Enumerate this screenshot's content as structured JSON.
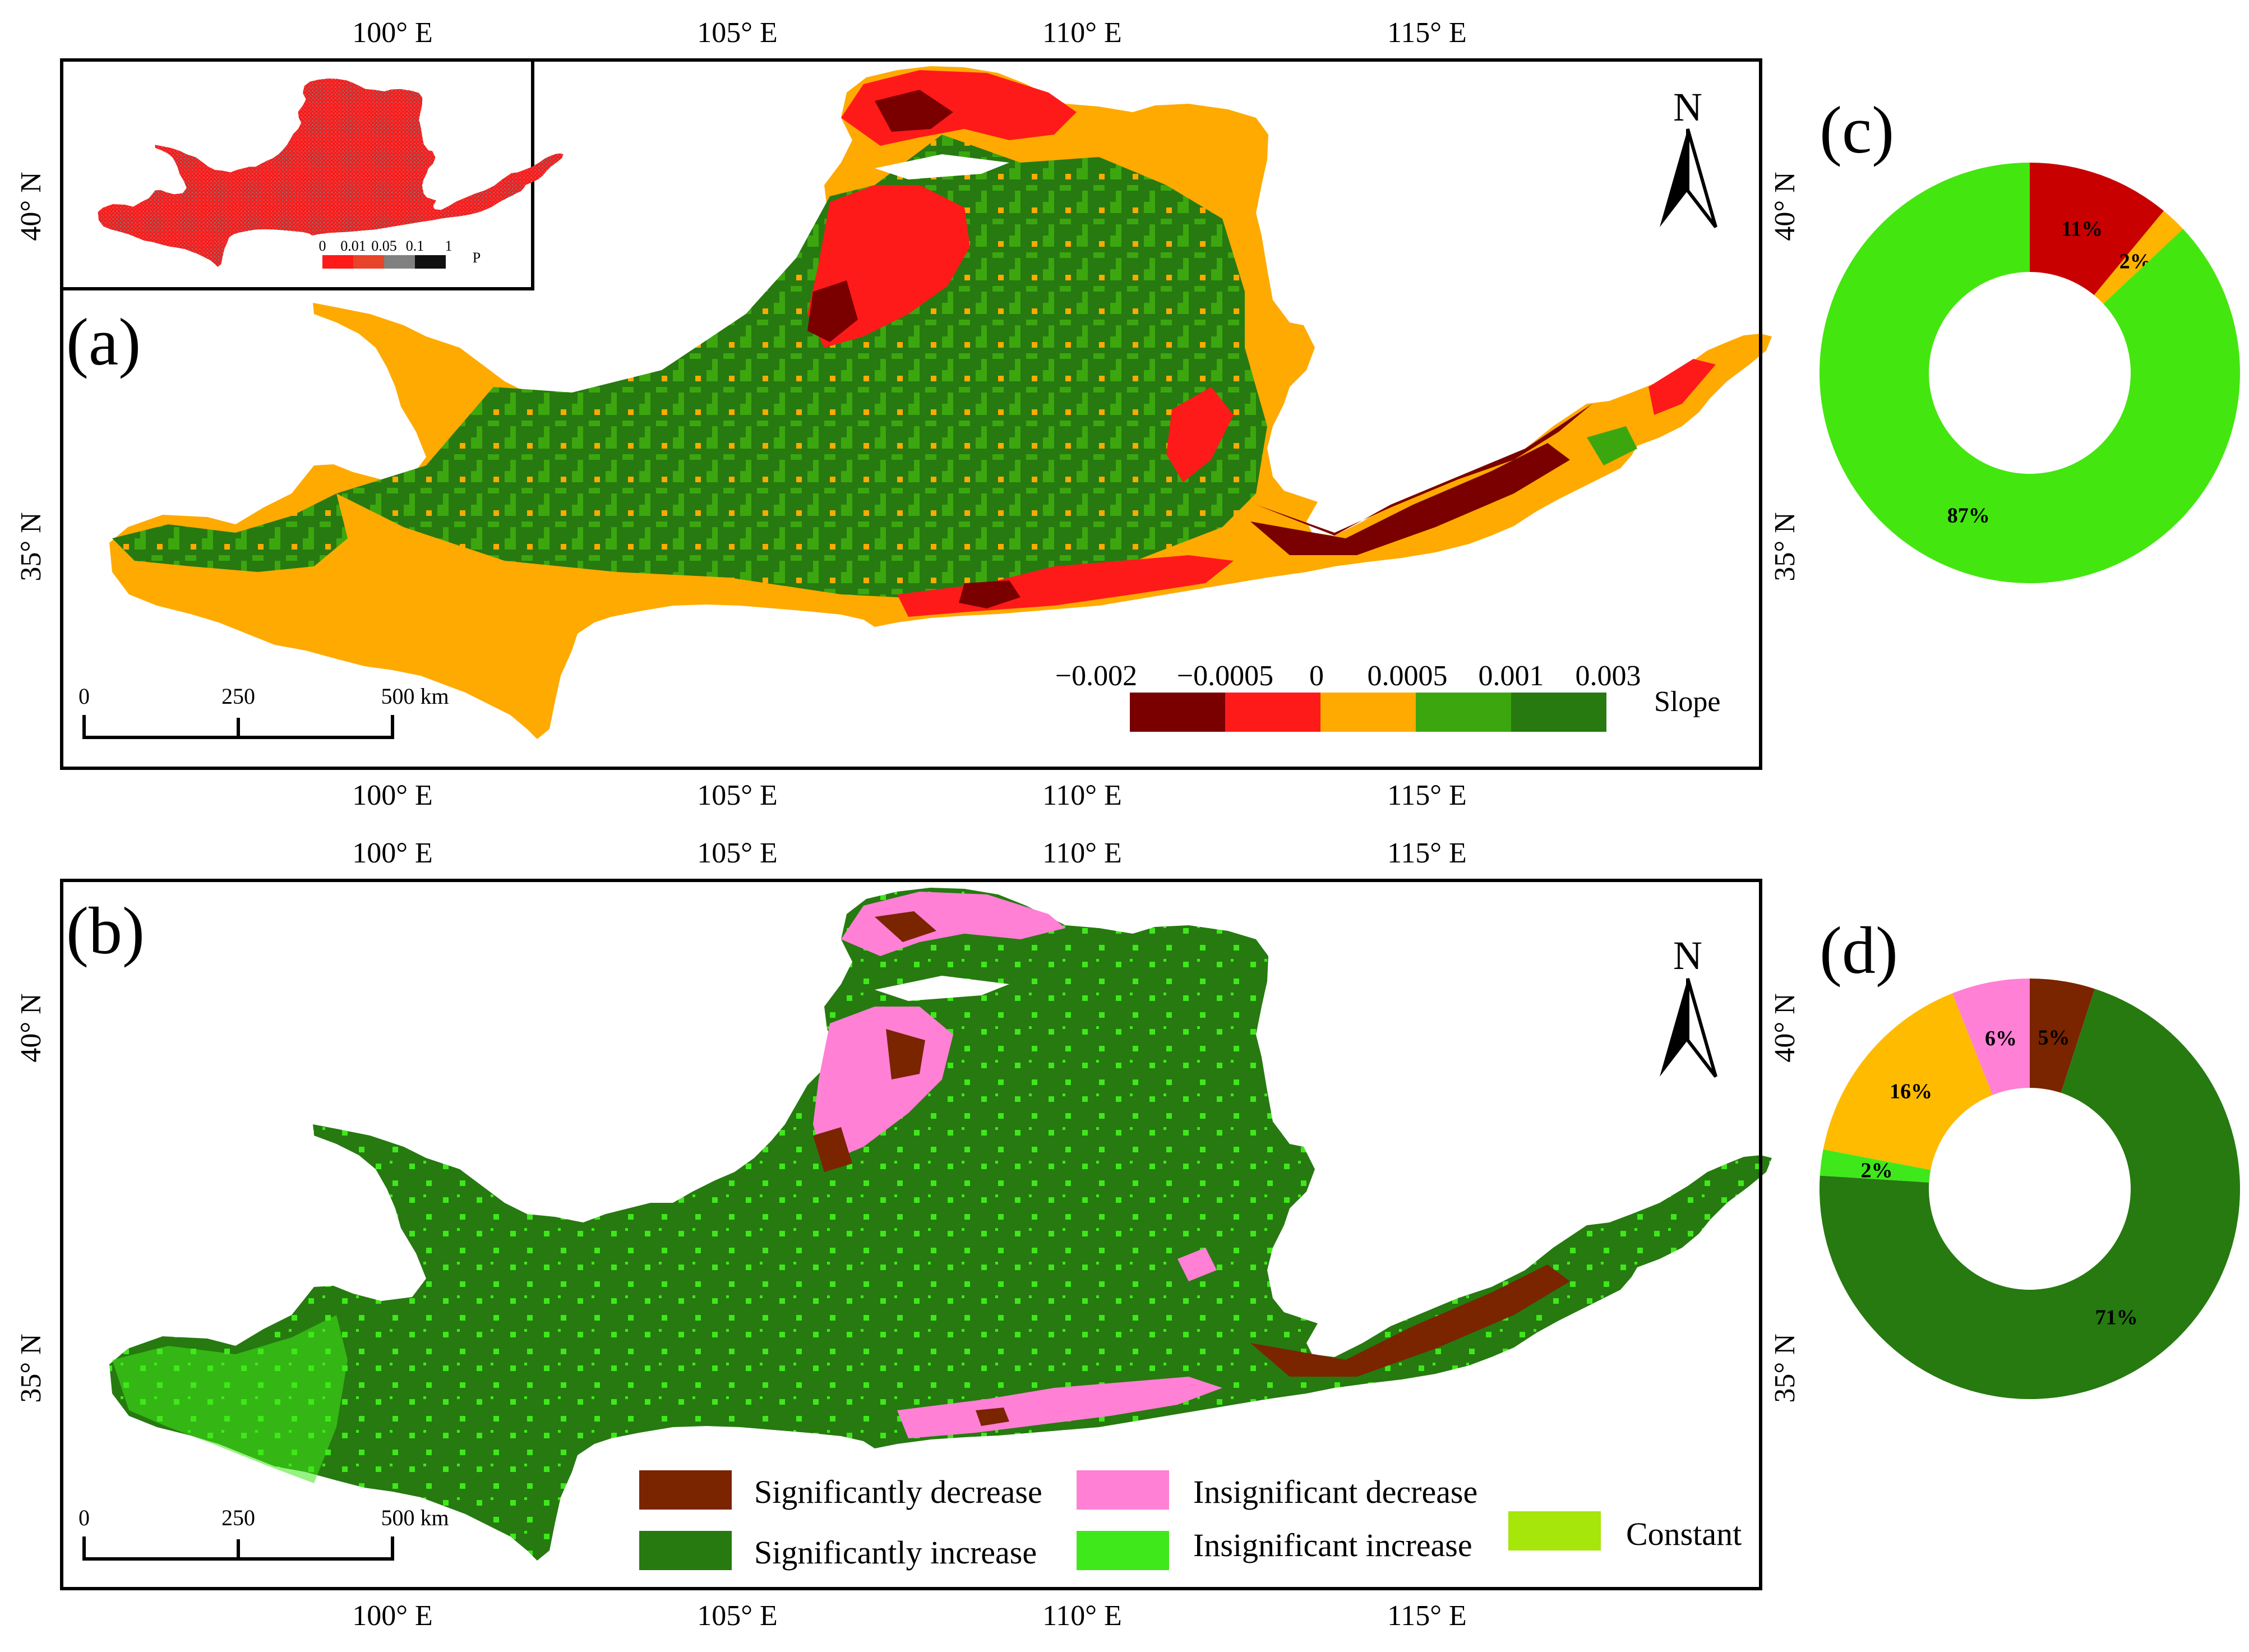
{
  "panels": {
    "a": {
      "label": "(a)"
    },
    "b": {
      "label": "(b)"
    },
    "c": {
      "label": "(c)"
    },
    "d": {
      "label": "(d)"
    }
  },
  "axes": {
    "lon_ticks": [
      "100° E",
      "105° E",
      "110° E",
      "115° E"
    ],
    "lat_ticks": [
      "35° N",
      "40° N"
    ]
  },
  "north_arrow": {
    "letter": "N"
  },
  "scale_bar": {
    "labels": [
      "0",
      "250",
      "500 km"
    ]
  },
  "inset": {
    "labels": [
      "0",
      "0.01",
      "0.05",
      "0.1",
      "1"
    ],
    "title": "P",
    "colors": [
      "#ff1a1a",
      "#e8442a",
      "#808080",
      "#111111"
    ]
  },
  "slope_legend": {
    "title": "Slope",
    "ticks": [
      "−0.002",
      "−0.0005",
      "0",
      "0.0005",
      "0.001",
      "0.003"
    ],
    "colors": [
      "#7a0000",
      "#ff1a1a",
      "#ffaa00",
      "#3ca60f",
      "#267a10"
    ]
  },
  "trend_legend": {
    "items": [
      {
        "label": "Significantly decrease",
        "color": "#7a2400"
      },
      {
        "label": "Insignificant decrease",
        "color": "#ff80d5"
      },
      {
        "label": "Constant",
        "color": "#a6e60a"
      },
      {
        "label": "Significantly increase",
        "color": "#267a10"
      },
      {
        "label": "Insignificant increase",
        "color": "#3fe81a"
      }
    ]
  },
  "colors": {
    "sig_decrease": "#7a2400",
    "insig_decrease": "#ff80d5",
    "sig_increase": "#267a10",
    "insig_increase": "#3fe81a",
    "slope_red": "#ff1a1a",
    "slope_dark": "#7a0000",
    "slope_orange": "#ffaa00",
    "slope_green": "#3ca60f",
    "slope_dgreen": "#267a10"
  },
  "chart_data": [
    {
      "type": "pie",
      "title": "(c)",
      "variant": "donut",
      "slices": [
        {
          "label": "11%",
          "value": 11,
          "color": "#c80000"
        },
        {
          "label": "2%",
          "value": 2,
          "color": "#ffb400"
        },
        {
          "label": "87%",
          "value": 87,
          "color": "#44e60f"
        }
      ]
    },
    {
      "type": "pie",
      "title": "(d)",
      "variant": "donut",
      "slices": [
        {
          "label": "5%",
          "value": 5,
          "color": "#7a2400"
        },
        {
          "label": "71%",
          "value": 71,
          "color": "#267a10"
        },
        {
          "label": "2%",
          "value": 2,
          "color": "#3fe81a"
        },
        {
          "label": "16%",
          "value": 16,
          "color": "#ffbb00"
        },
        {
          "label": "6%",
          "value": 6,
          "color": "#ff80d5"
        }
      ]
    }
  ]
}
